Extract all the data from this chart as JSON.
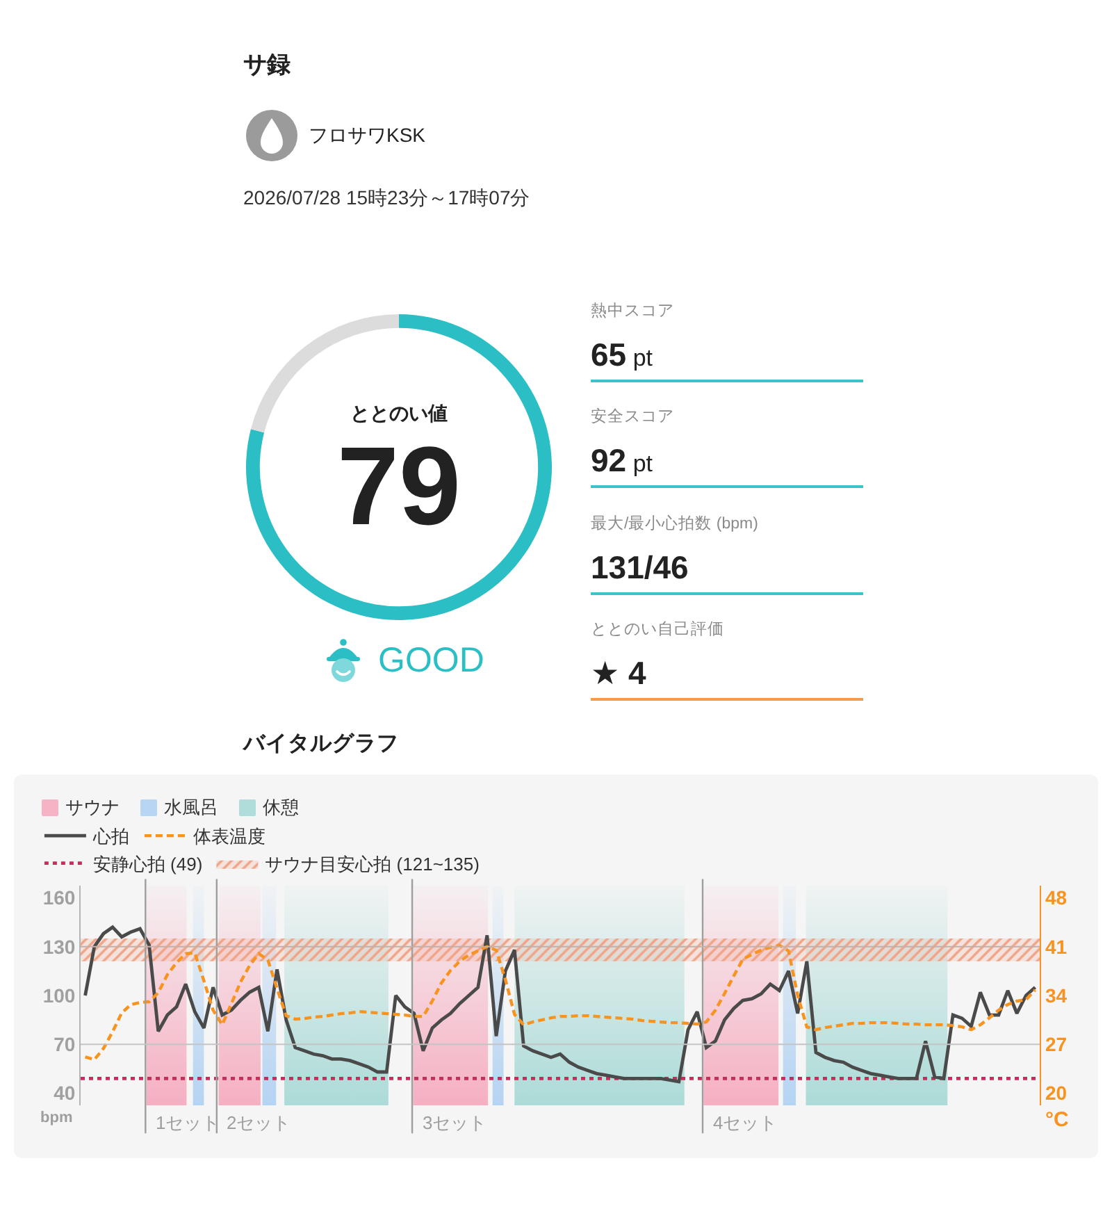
{
  "chart_data": [
    {
      "type": "other",
      "title": "サ録",
      "annotations": [
        "フロサワKSK",
        "2026/07/28 15時23分～17時07分"
      ]
    },
    {
      "type": "donut",
      "title": "ととのい値",
      "categories": [
        null,
        null
      ],
      "values": [
        79,
        21
      ],
      "colors": [
        "#2bbfc5",
        "#dcdcdc"
      ],
      "annotations": [
        "79",
        "GOOD"
      ]
    },
    {
      "type": "other",
      "annotations": [
        "熱中スコア",
        "65 pt",
        "安全スコア",
        "92 pt",
        "最大/最小心拍数 (bpm)",
        "131/46",
        "ととのい自己評価",
        "★ 4"
      ]
    },
    {
      "type": "line",
      "title": "バイタルグラフ",
      "ylabel": "bpm",
      "y2label": "°C",
      "categories": [
        null,
        null,
        null,
        null,
        null,
        null,
        null,
        null,
        null,
        null,
        null,
        null,
        null,
        null,
        null,
        null,
        null,
        null,
        null,
        null,
        null,
        null,
        null,
        null,
        null,
        null,
        null,
        null,
        null,
        null,
        null,
        null,
        null,
        null,
        null,
        null,
        null,
        null,
        null,
        null,
        null,
        null,
        null,
        null,
        null,
        null,
        null,
        null,
        null,
        null,
        null,
        null,
        null,
        null,
        null,
        null,
        null,
        null,
        null,
        null,
        null,
        null,
        null,
        null,
        null,
        null,
        null,
        null,
        null,
        null,
        null,
        null,
        null,
        null,
        null,
        null,
        null,
        null,
        null,
        null,
        null,
        null,
        null,
        null,
        null,
        null,
        null,
        null,
        null,
        null,
        null,
        null,
        null,
        null,
        null,
        null,
        null,
        null,
        null,
        null,
        null,
        null,
        null,
        null,
        null
      ],
      "ylim": [
        32.5,
        167.5
      ],
      "yticks": [
        40,
        70,
        100,
        130,
        160
      ],
      "y2lim": [
        18.25,
        49.75
      ],
      "y2ticks": [
        20,
        27,
        34,
        41,
        48
      ],
      "tick_labels": "y",
      "legend": "top left",
      "series": [
        {
          "name": "心拍",
          "color": "#4a4a4a",
          "values": [
            100,
            130,
            138,
            142,
            136,
            139,
            141,
            131,
            78,
            88,
            93,
            107,
            90,
            80,
            105,
            88,
            91,
            97,
            102,
            105,
            78,
            116,
            85,
            68,
            66,
            64,
            63,
            61,
            61,
            60,
            58,
            56,
            53,
            53,
            100,
            93,
            89,
            66,
            80,
            85,
            89,
            95,
            100,
            105,
            137,
            75,
            115,
            128,
            69,
            66,
            64,
            62,
            64,
            59,
            56,
            54,
            52,
            51,
            50,
            49,
            49,
            49,
            49,
            49,
            48,
            47,
            79,
            90,
            68,
            72,
            85,
            92,
            97,
            98,
            101,
            107,
            103,
            115,
            89,
            121,
            65,
            62,
            60,
            59,
            56,
            54,
            52,
            51,
            50,
            49,
            49,
            49,
            72,
            50,
            49,
            88,
            86,
            81,
            102,
            88,
            88,
            103,
            89,
            100,
            105
          ]
        },
        {
          "name": "体表温度",
          "color": "#f7931e",
          "axis": "y2",
          "line_style": "dashed",
          "values": [
            25.2,
            24.8,
            26.4,
            28.8,
            31.5,
            32.7,
            33,
            33.1,
            34.4,
            37,
            38.7,
            40,
            40.1,
            36.1,
            31.9,
            29.8,
            32.8,
            35.9,
            38.3,
            40,
            39.1,
            35,
            31.1,
            30.6,
            30.7,
            30.9,
            31,
            31.2,
            31.4,
            31.5,
            31.7,
            31.6,
            31.5,
            31.4,
            31.3,
            31.2,
            31,
            31,
            33.2,
            35.8,
            37.6,
            38.9,
            39.8,
            40.4,
            41,
            40.5,
            36.3,
            31.3,
            29.8,
            30.2,
            30.5,
            30.8,
            31,
            31,
            31.1,
            31.1,
            31,
            30.9,
            30.8,
            30.7,
            30.6,
            30.4,
            30.3,
            30.2,
            30.1,
            30.1,
            30,
            29.9,
            30.2,
            31.9,
            34.3,
            36.8,
            39.2,
            39.9,
            40.5,
            40.9,
            41.2,
            40.4,
            34,
            29.5,
            29.1,
            29.4,
            29.6,
            29.8,
            30,
            30,
            30.1,
            30.1,
            30.1,
            30,
            29.9,
            29.9,
            29.8,
            29.8,
            29.8,
            29.7,
            29.5,
            29.1,
            29.8,
            30.8,
            31.9,
            32.7,
            33.2,
            33.4,
            34.8
          ]
        }
      ],
      "ref_lines": [
        {
          "axis": "y",
          "value": 70,
          "color": "#c4c4c4"
        },
        {
          "axis": "y",
          "value": 130,
          "color": "#c4b0a8"
        },
        {
          "axis": "y",
          "value": 49,
          "label": "安静心拍 (49)",
          "color": "#c0305a",
          "line_style": "dotted"
        }
      ],
      "bands": [
        {
          "axis": "y",
          "from": 121,
          "to": 135,
          "label": "サウナ目安心拍 (121~135)",
          "color": "#f0a58a"
        }
      ],
      "annotations": [
        "サウナ",
        "水風呂",
        "休憩",
        "1セット",
        "2セット",
        "3セット",
        "4セット"
      ]
    }
  ]
}
